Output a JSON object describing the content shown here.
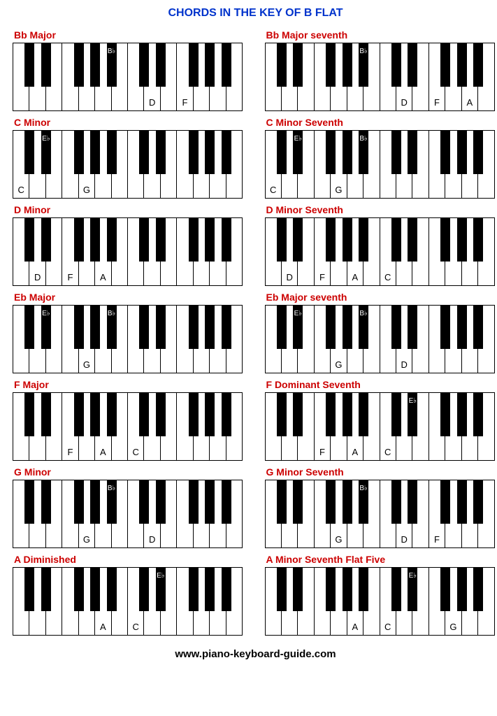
{
  "title": "CHORDS IN THE KEY OF B FLAT",
  "footer": "www.piano-keyboard-guide.com",
  "colors": {
    "title": "#0033cc",
    "chord_name": "#cc0000",
    "white_key": "#ffffff",
    "black_key": "#000000",
    "border": "#000000"
  },
  "keyboard": {
    "white_count": 14,
    "white_width": 23.43,
    "black_width": 14,
    "total_width": 328,
    "height": 96,
    "black_height": 62,
    "black_positions_on": [
      0,
      1,
      3,
      4,
      5,
      7,
      8,
      10,
      11,
      12
    ],
    "black_names": [
      "C#",
      "D#",
      "F#",
      "G#",
      "A#",
      "C#",
      "D#",
      "F#",
      "G#",
      "A#"
    ],
    "white_names": [
      "C",
      "D",
      "E",
      "F",
      "G",
      "A",
      "B",
      "C",
      "D",
      "E",
      "F",
      "G",
      "A",
      "B"
    ]
  },
  "chords": [
    {
      "name": "Bb Major",
      "white_labels": {
        "8": "D",
        "10": "F"
      },
      "black_labels": {
        "4": "B♭"
      }
    },
    {
      "name": "Bb Major seventh",
      "white_labels": {
        "8": "D",
        "10": "F",
        "12": "A"
      },
      "black_labels": {
        "4": "B♭"
      }
    },
    {
      "name": "C Minor",
      "white_labels": {
        "0": "C",
        "4": "G"
      },
      "black_labels": {
        "1": "E♭"
      }
    },
    {
      "name": "C Minor Seventh",
      "white_labels": {
        "0": "C",
        "4": "G"
      },
      "black_labels": {
        "1": "E♭",
        "4": "B♭"
      }
    },
    {
      "name": "D Minor",
      "white_labels": {
        "1": "D",
        "3": "F",
        "5": "A"
      },
      "black_labels": {}
    },
    {
      "name": "D Minor Seventh",
      "white_labels": {
        "1": "D",
        "3": "F",
        "5": "A",
        "7": "C"
      },
      "black_labels": {}
    },
    {
      "name": "Eb Major",
      "white_labels": {
        "4": "G"
      },
      "black_labels": {
        "1": "E♭",
        "4": "B♭"
      }
    },
    {
      "name": "Eb Major seventh",
      "white_labels": {
        "4": "G",
        "8": "D"
      },
      "black_labels": {
        "1": "E♭",
        "4": "B♭"
      }
    },
    {
      "name": "F Major",
      "white_labels": {
        "3": "F",
        "5": "A",
        "7": "C"
      },
      "black_labels": {}
    },
    {
      "name": "F Dominant Seventh",
      "white_labels": {
        "3": "F",
        "5": "A",
        "7": "C"
      },
      "black_labels": {
        "6": "E♭"
      }
    },
    {
      "name": "G Minor",
      "white_labels": {
        "4": "G",
        "8": "D"
      },
      "black_labels": {
        "4": "B♭"
      }
    },
    {
      "name": "G Minor Seventh",
      "white_labels": {
        "4": "G",
        "8": "D",
        "10": "F"
      },
      "black_labels": {
        "4": "B♭"
      }
    },
    {
      "name": "A Diminished",
      "white_labels": {
        "5": "A",
        "7": "C"
      },
      "black_labels": {
        "6": "E♭"
      }
    },
    {
      "name": "A Minor Seventh Flat Five",
      "white_labels": {
        "5": "A",
        "7": "C",
        "11": "G"
      },
      "black_labels": {
        "6": "E♭"
      }
    }
  ]
}
